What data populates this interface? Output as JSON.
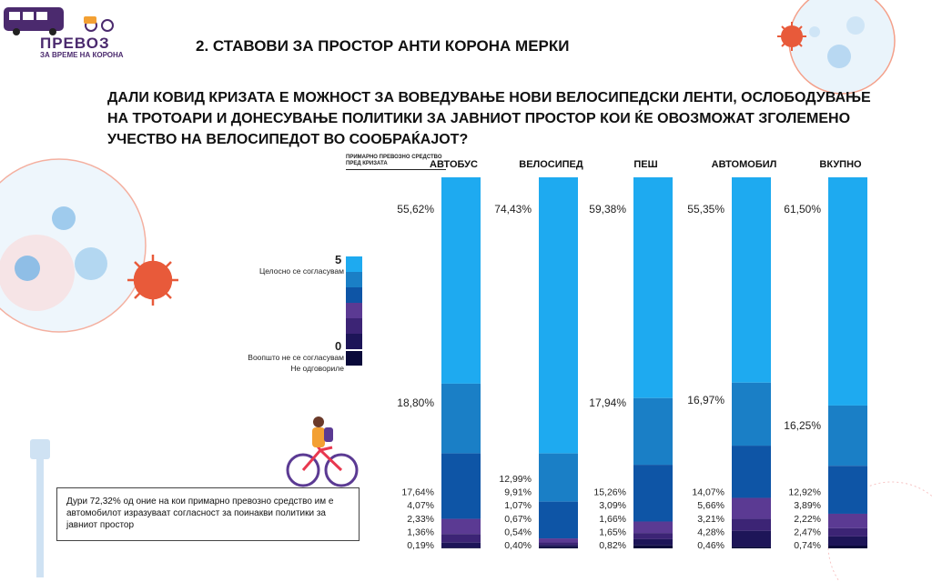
{
  "header": {
    "logo_title": "ПРЕВОЗ",
    "logo_subtitle": "ЗА ВРЕМЕ НА КОРОНА",
    "section_title": "2. СТАВОВИ ЗА ПРОСТОР АНТИ КОРОНА МЕРКИ"
  },
  "question": "ДАЛИ КОВИД КРИЗАТА Е МОЖНОСТ ЗА  ВОВЕДУВАЊЕ НОВИ ВЕЛОСИПЕДСКИ ЛЕНТИ, ОСЛОБОДУВАЊЕ НА ТРОТОАРИ И ДОНЕСУВАЊЕ ПОЛИТИКИ ЗА ЈАВНИОТ ПРОСТОР КОИ ЌЕ ОВОЗМОЖАТ ЗГОЛЕМЕНО УЧЕСТВО НА ВЕЛОСИПЕДОТ ВО СООБРАЌАЈОТ?",
  "axis_note": "ПРИМАРНО ПРЕВОЗНО СРЕДСТВО ПРЕД КРИЗАТА",
  "legend": {
    "top_num": "5",
    "top_label": "Целосно се согласувам",
    "bottom_num": "0",
    "bottom_label": "Воопшто не се согласувам",
    "no_answer_label": "Не одговориле",
    "colors": [
      "#1eaaf0",
      "#1a7fc6",
      "#0e55a6",
      "#5b3a93",
      "#3c2475",
      "#1d1558",
      "#0a0a3a"
    ]
  },
  "note": "Дури 72,32% од оние на кои примарно превозно средство им е автомобилот изразуваат согласност за поинакви политики за јавниот простор",
  "chart_data": {
    "type": "bar",
    "stacked": true,
    "normalized": true,
    "categories": [
      "АВТОБУС",
      "ВЕЛОСИПЕД",
      "ПЕШ",
      "АВТОМОБИЛ",
      "ВКУПНО"
    ],
    "series": [
      {
        "name": "5",
        "color": "#1eaaf0",
        "values": [
          55.62,
          74.43,
          59.38,
          55.35,
          61.5
        ]
      },
      {
        "color": "#1a7fc6",
        "values": [
          18.8,
          12.99,
          17.94,
          16.97,
          16.25
        ]
      },
      {
        "color": "#0e55a6",
        "values": [
          17.64,
          9.91,
          15.26,
          14.07,
          12.92
        ]
      },
      {
        "color": "#5b3a93",
        "values": [
          4.07,
          1.07,
          3.09,
          5.66,
          3.89
        ]
      },
      {
        "color": "#3c2475",
        "values": [
          2.33,
          0.67,
          1.66,
          3.21,
          2.22
        ]
      },
      {
        "name": "0",
        "color": "#1d1558",
        "values": [
          1.36,
          0.54,
          1.65,
          4.28,
          2.47
        ]
      },
      {
        "name": "Не одговориле",
        "color": "#0a0a3a",
        "values": [
          0.19,
          0.4,
          0.82,
          0.46,
          0.74
        ]
      }
    ],
    "labels": [
      {
        "top": "55,62%",
        "mid": "18,80%",
        "low": [
          "17,64%",
          "4,07%",
          "2,33%",
          "1,36%",
          "0,19%"
        ]
      },
      {
        "top": "74,43%",
        "mid": "",
        "low": [
          "12,99%",
          "9,91%",
          "1,07%",
          "0,67%",
          "0,54%",
          "0,40%"
        ]
      },
      {
        "top": "59,38%",
        "mid": "17,94%",
        "low": [
          "15,26%",
          "3,09%",
          "1,66%",
          "1,65%",
          "0,82%"
        ]
      },
      {
        "top": "55,35%",
        "mid": "16,97%",
        "low": [
          "14,07%",
          "5,66%",
          "3,21%",
          "4,28%",
          "0,46%"
        ]
      },
      {
        "top": "61,50%",
        "mid": "16,25%",
        "low": [
          "12,92%",
          "3,89%",
          "2,22%",
          "2,47%",
          "0,74%"
        ]
      }
    ]
  }
}
